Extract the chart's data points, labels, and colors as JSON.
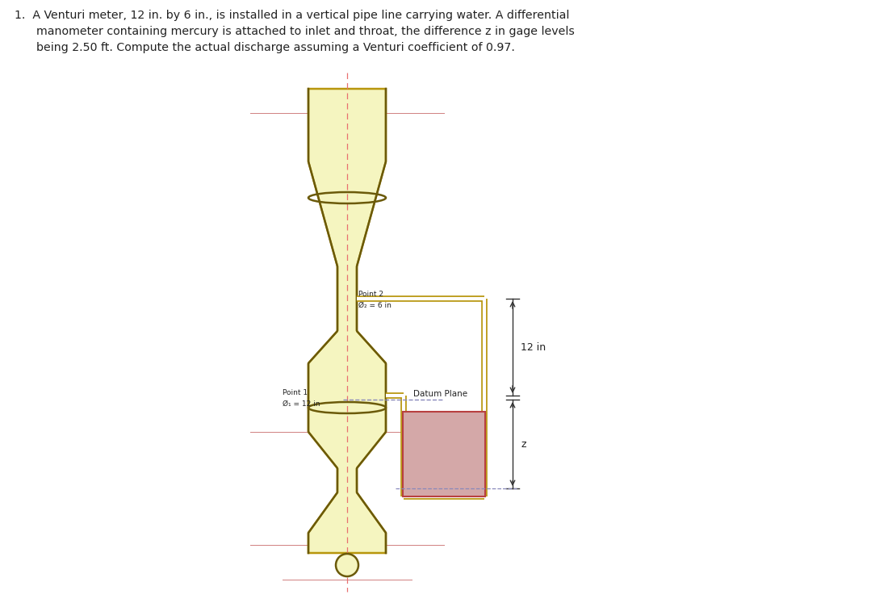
{
  "page_bg": "#ffffff",
  "pipe_fill": "#f5f5c0",
  "pipe_edge": "#b8960c",
  "pipe_dark_edge": "#6b5a0a",
  "centerline_color": "#e87070",
  "horiz_line_color": "#d08080",
  "manometer_outer_fill": "#f5f5c0",
  "manometer_outer_edge": "#b8960c",
  "manometer_tube_color": "#b84040",
  "mercury_fill": "#d4a8a8",
  "mercury_edge": "#b84040",
  "dim_color": "#333333",
  "datum_line_color": "#8888bb",
  "text_color": "#222222",
  "title_line1": "1.  A Venturi meter, 12 in. by 6 in., is installed in a vertical pipe line carrying water. A differential",
  "title_line2": "      manometer containing mercury is attached to inlet and throat, the difference z in gage levels",
  "title_line3": "      being 2.50 ft. Compute the actual discharge assuming a Venturi coefficient of 0.97.",
  "label_point2": "Point 2",
  "label_d2": "Ø₂ = 6 in",
  "label_point1": "Point 1",
  "label_d1": "Ø₁ = 12 in",
  "label_datum": "Datum Plane",
  "label_12in": "12 in",
  "label_z": "z"
}
